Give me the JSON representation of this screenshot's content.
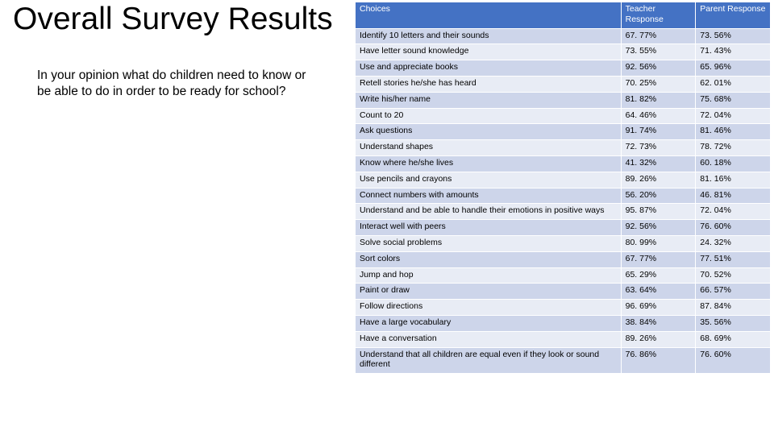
{
  "title": "Overall Survey Results",
  "subtitle": "In your opinion what do children need to know or be able to do in order to be ready for school?",
  "table": {
    "type": "table",
    "header_bg": "#4472c4",
    "header_text_color": "#ffffff",
    "row_odd_bg": "#cdd5ea",
    "row_even_bg": "#e8ecf5",
    "border_color": "#ffffff",
    "font_size_pt": 8,
    "columns": [
      {
        "key": "choice",
        "label": "Choices",
        "width_pct": 64,
        "align": "left"
      },
      {
        "key": "teacher",
        "label": "Teacher Response",
        "width_pct": 18,
        "align": "left"
      },
      {
        "key": "parent",
        "label": "Parent Response",
        "width_pct": 18,
        "align": "left"
      }
    ],
    "rows": [
      {
        "choice": "Identify 10 letters and their sounds",
        "teacher": "67. 77%",
        "parent": "73. 56%"
      },
      {
        "choice": "Have letter sound knowledge",
        "teacher": "73. 55%",
        "parent": "71. 43%"
      },
      {
        "choice": "Use and appreciate books",
        "teacher": "92. 56%",
        "parent": "65. 96%"
      },
      {
        "choice": "Retell stories he/she has heard",
        "teacher": "70. 25%",
        "parent": "62. 01%"
      },
      {
        "choice": "Write his/her name",
        "teacher": "81. 82%",
        "parent": "75. 68%"
      },
      {
        "choice": "Count to 20",
        "teacher": "64. 46%",
        "parent": "72. 04%"
      },
      {
        "choice": "Ask questions",
        "teacher": "91. 74%",
        "parent": "81. 46%"
      },
      {
        "choice": "Understand shapes",
        "teacher": "72. 73%",
        "parent": "78. 72%"
      },
      {
        "choice": "Know where he/she lives",
        "teacher": "41. 32%",
        "parent": "60. 18%"
      },
      {
        "choice": "Use pencils and crayons",
        "teacher": "89. 26%",
        "parent": "81. 16%"
      },
      {
        "choice": "Connect numbers with amounts",
        "teacher": "56. 20%",
        "parent": "46. 81%"
      },
      {
        "choice": "Understand and be able to handle their emotions in positive ways",
        "teacher": "95. 87%",
        "parent": "72. 04%"
      },
      {
        "choice": "Interact well with peers",
        "teacher": "92. 56%",
        "parent": "76. 60%"
      },
      {
        "choice": "Solve social problems",
        "teacher": "80. 99%",
        "parent": "24. 32%"
      },
      {
        "choice": "Sort colors",
        "teacher": "67. 77%",
        "parent": "77. 51%"
      },
      {
        "choice": "Jump and hop",
        "teacher": "65. 29%",
        "parent": "70. 52%"
      },
      {
        "choice": "Paint or draw",
        "teacher": "63. 64%",
        "parent": "66. 57%"
      },
      {
        "choice": "Follow directions",
        "teacher": "96. 69%",
        "parent": "87. 84%"
      },
      {
        "choice": "Have a large vocabulary",
        "teacher": "38. 84%",
        "parent": "35. 56%"
      },
      {
        "choice": "Have a conversation",
        "teacher": "89. 26%",
        "parent": "68. 69%"
      },
      {
        "choice": "Understand that all children are equal even if they look or sound different",
        "teacher": "76. 86%",
        "parent": "76. 60%"
      }
    ]
  }
}
